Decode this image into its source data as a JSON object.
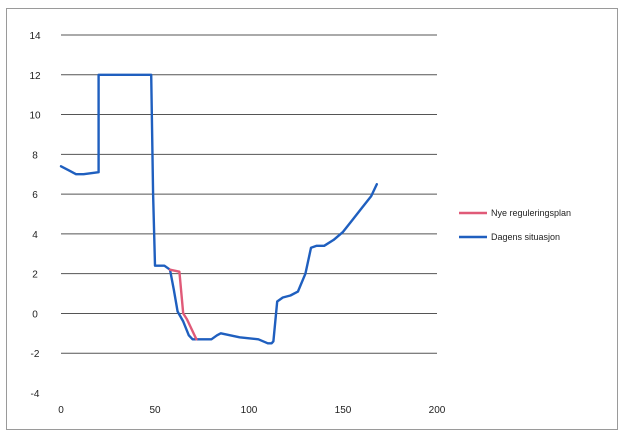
{
  "chart_data": {
    "type": "line",
    "title": "",
    "xlabel": "",
    "ylabel": "",
    "xlim": [
      0,
      200
    ],
    "ylim": [
      -4,
      14
    ],
    "x_ticks": [
      "0",
      "50",
      "100",
      "150",
      "200"
    ],
    "y_ticks": [
      "14",
      "12",
      "10",
      "8",
      "6",
      "4",
      "2",
      "0",
      "-2",
      "-4"
    ],
    "y_tick_values": [
      14,
      12,
      10,
      8,
      6,
      4,
      2,
      0,
      -2,
      -4
    ],
    "x_tick_values": [
      0,
      50,
      100,
      150,
      200
    ],
    "grid": true,
    "legend_position": "right",
    "series": [
      {
        "name": "Nye reguleringsplan",
        "color": "#e05a78",
        "x": [
          58,
          63,
          65,
          67,
          70,
          72
        ],
        "y": [
          2.2,
          2.1,
          0.0,
          -0.3,
          -0.9,
          -1.3
        ]
      },
      {
        "name": "Dagens situasjon",
        "color": "#1f5fbf",
        "x": [
          0,
          4,
          8,
          12,
          16,
          20,
          20,
          25,
          30,
          35,
          40,
          45,
          48,
          49,
          50,
          55,
          58,
          60,
          62,
          65,
          68,
          70,
          75,
          80,
          83,
          85,
          90,
          95,
          100,
          105,
          110,
          112,
          113,
          115,
          118,
          122,
          126,
          130,
          133,
          136,
          140,
          145,
          150,
          155,
          160,
          165,
          168
        ],
        "y": [
          7.4,
          7.2,
          7.0,
          7.0,
          7.05,
          7.1,
          12.0,
          12.0,
          12.0,
          12.0,
          12.0,
          12.0,
          12.0,
          6.0,
          2.4,
          2.4,
          2.2,
          1.2,
          0.1,
          -0.4,
          -1.1,
          -1.3,
          -1.3,
          -1.3,
          -1.1,
          -1.0,
          -1.1,
          -1.2,
          -1.25,
          -1.3,
          -1.5,
          -1.5,
          -1.4,
          0.6,
          0.8,
          0.9,
          1.1,
          2.0,
          3.3,
          3.4,
          3.4,
          3.7,
          4.1,
          4.7,
          5.3,
          5.9,
          6.5
        ]
      }
    ]
  }
}
